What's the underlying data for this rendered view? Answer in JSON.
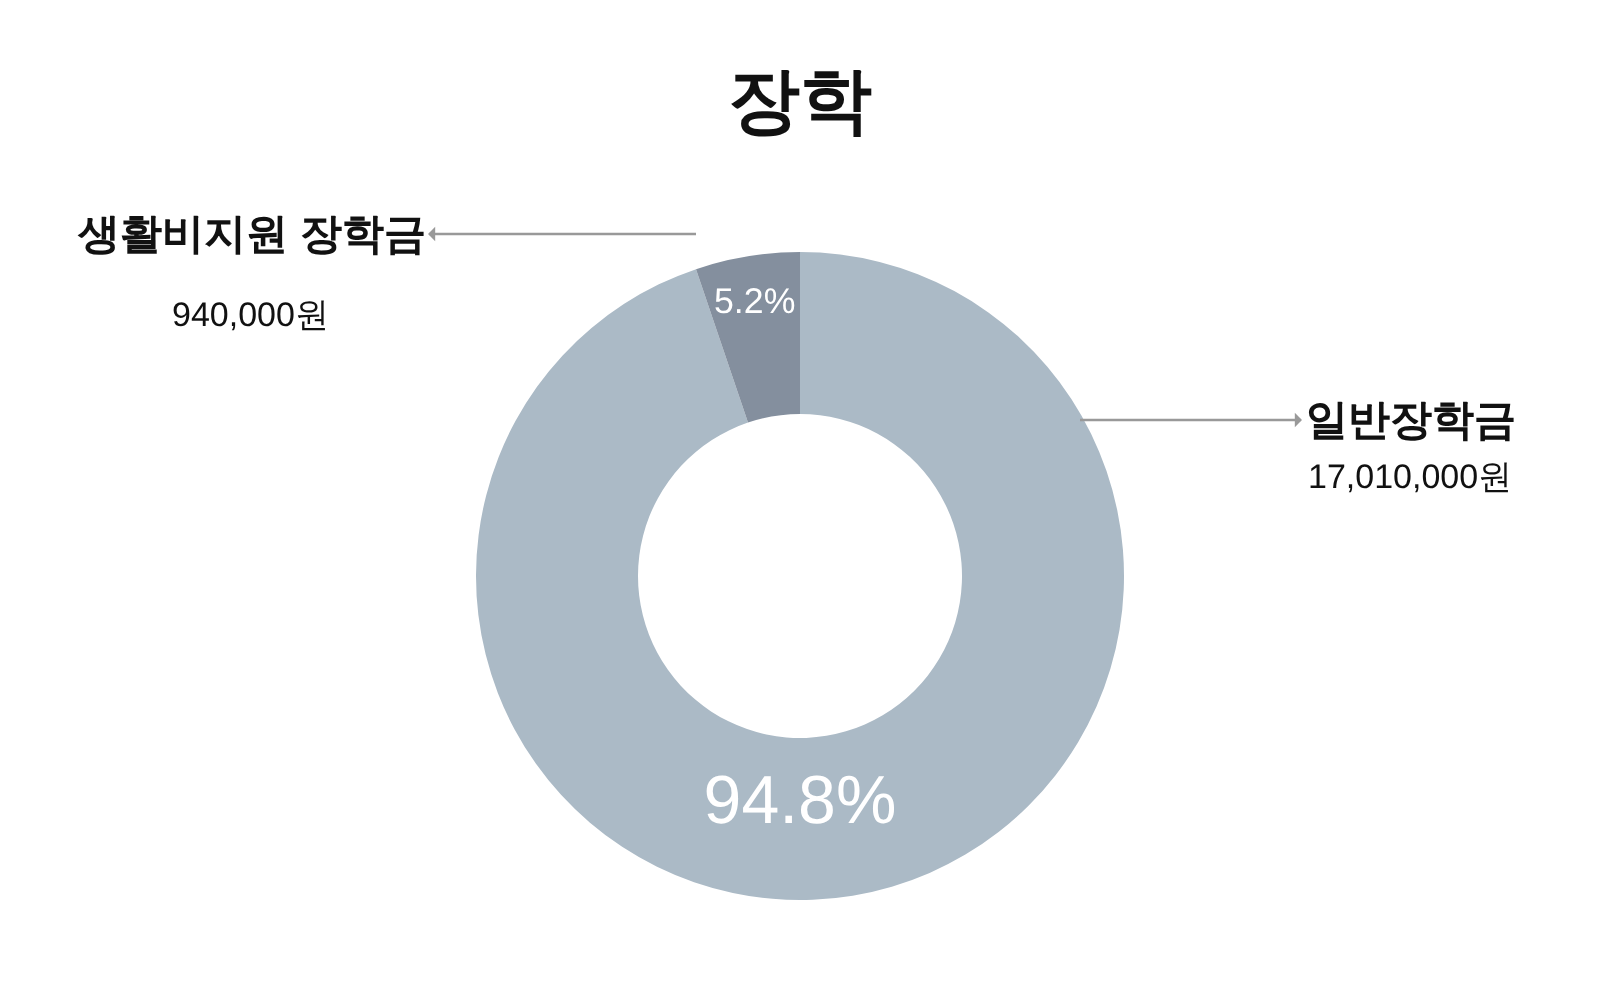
{
  "chart_data": {
    "type": "donut",
    "title": "장학",
    "categories": [
      "일반장학금",
      "생활비지원 장학금"
    ],
    "values": [
      94.8,
      5.2
    ],
    "value_labels": [
      "94.8%",
      "5.2%"
    ],
    "colors": [
      "#abbac6",
      "#848f9e"
    ],
    "annotations": [
      "17,010,000원",
      "940,000원"
    ],
    "legend": false
  }
}
